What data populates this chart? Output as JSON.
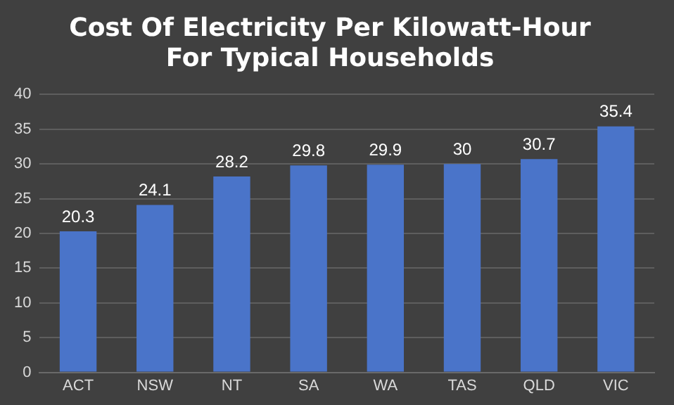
{
  "chart_data": {
    "type": "bar",
    "title": "Cost Of Electricity Per Kilowatt-Hour\nFor Typical Households",
    "categories": [
      "ACT",
      "NSW",
      "NT",
      "SA",
      "WA",
      "TAS",
      "QLD",
      "VIC"
    ],
    "values": [
      20.3,
      24.1,
      28.2,
      29.8,
      29.9,
      30,
      30.7,
      35.4
    ],
    "color": "#4a74c9",
    "ylim": [
      0,
      40
    ],
    "yticks": [
      0,
      5,
      10,
      15,
      20,
      25,
      30,
      35,
      40
    ],
    "grid": "y",
    "data_labels": true,
    "legend": false
  }
}
